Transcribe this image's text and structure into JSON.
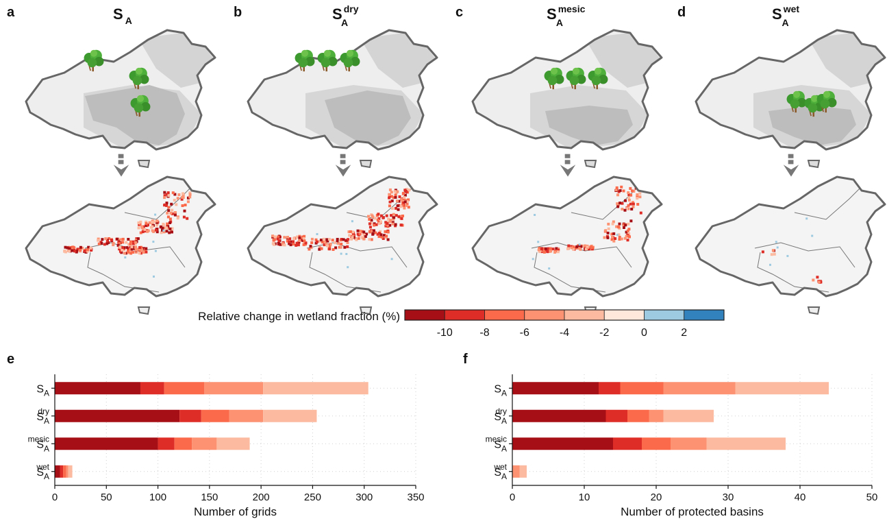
{
  "panels": {
    "a": "a",
    "b": "b",
    "c": "c",
    "d": "d",
    "e": "e",
    "f": "f"
  },
  "scenarios": [
    {
      "base": "S",
      "sub": "A",
      "sup": ""
    },
    {
      "base": "S",
      "sub": "A",
      "sup": "dry"
    },
    {
      "base": "S",
      "sub": "A",
      "sup": "mesic"
    },
    {
      "base": "S",
      "sub": "A",
      "sup": "wet"
    }
  ],
  "colorbar": {
    "title": "Relative change in wetland fraction (%)",
    "colors": [
      "#a50f15",
      "#de2d26",
      "#fb6a4a",
      "#fc9272",
      "#fcbba1",
      "#fee8dc",
      "#9ecae1",
      "#3182bd"
    ],
    "tick_labels": [
      "-10",
      "-8",
      "-6",
      "-4",
      "-2",
      "0",
      "2"
    ]
  },
  "chart_data": [
    {
      "type": "bar",
      "orientation": "horizontal",
      "stacked": "cumulative",
      "categories": [
        {
          "base": "S",
          "sub": "A",
          "sup": ""
        },
        {
          "base": "S",
          "sub": "A",
          "sup": "dry"
        },
        {
          "base": "S",
          "sub": "A",
          "sup": "mesic"
        },
        {
          "base": "S",
          "sub": "A",
          "sup": "wet"
        }
      ],
      "cumulative_values": [
        [
          83,
          106,
          145,
          202,
          304
        ],
        [
          121,
          142,
          169,
          202,
          254
        ],
        [
          100,
          116,
          133,
          157,
          189
        ],
        [
          5,
          8,
          11,
          13,
          17
        ]
      ],
      "series_colors": [
        "#a50f15",
        "#de2d26",
        "#fb6a4a",
        "#fc9272",
        "#fcbba1"
      ],
      "xlabel": "Number of grids",
      "xlim": [
        0,
        350
      ],
      "xticks": [
        0,
        50,
        100,
        150,
        200,
        250,
        300,
        350
      ],
      "grid": "dotted"
    },
    {
      "type": "bar",
      "orientation": "horizontal",
      "stacked": "cumulative",
      "categories": [
        {
          "base": "S",
          "sub": "A",
          "sup": ""
        },
        {
          "base": "S",
          "sub": "A",
          "sup": "dry"
        },
        {
          "base": "S",
          "sub": "A",
          "sup": "mesic"
        },
        {
          "base": "S",
          "sub": "A",
          "sup": "wet"
        }
      ],
      "cumulative_values": [
        [
          12,
          15,
          21,
          31,
          44
        ],
        [
          13,
          16,
          19,
          21,
          28
        ],
        [
          14,
          18,
          22,
          27,
          38
        ],
        [
          0,
          0,
          0,
          1,
          2
        ]
      ],
      "series_colors": [
        "#a50f15",
        "#de2d26",
        "#fb6a4a",
        "#fc9272",
        "#fcbba1"
      ],
      "xlabel": "Number of protected basins",
      "xlim": [
        0,
        50
      ],
      "xticks": [
        0,
        10,
        20,
        30,
        40,
        50
      ],
      "grid": "dotted"
    }
  ]
}
